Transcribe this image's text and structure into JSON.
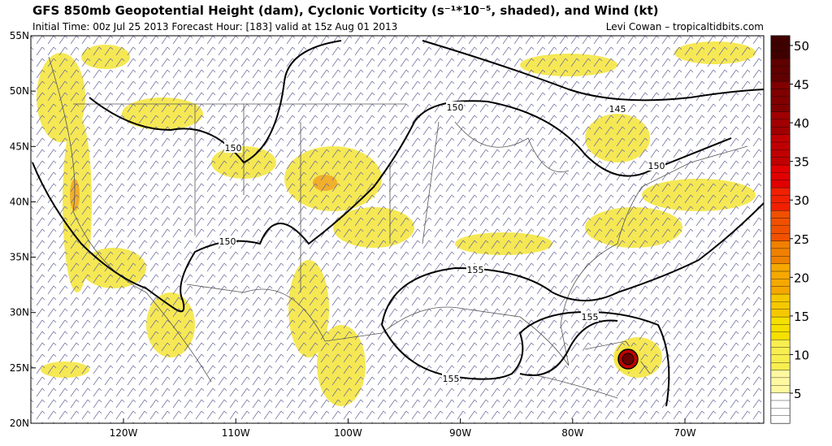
{
  "header": {
    "title": "GFS 850mb Geopotential Height (dam), Cyclonic Vorticity (s⁻¹*10⁻⁵, shaded), and Wind (kt)",
    "subtitle": "Initial Time: 00z Jul 25 2013 Forecast Hour: [183] valid at 15z Aug 01 2013",
    "credit": "Levi Cowan – tropicaltidbits.com"
  },
  "map": {
    "lat_labels": [
      "55N",
      "50N",
      "45N",
      "40N",
      "35N",
      "30N",
      "25N",
      "20N"
    ],
    "lon_labels": [
      "120W",
      "110W",
      "100W",
      "90W",
      "80W",
      "70W"
    ],
    "contour_labels": [
      "150",
      "150",
      "150",
      "150",
      "145",
      "155",
      "155",
      "155"
    ]
  },
  "colorbar": {
    "ticks": [
      50,
      45,
      40,
      35,
      30,
      25,
      20,
      15,
      10,
      5
    ]
  }
}
